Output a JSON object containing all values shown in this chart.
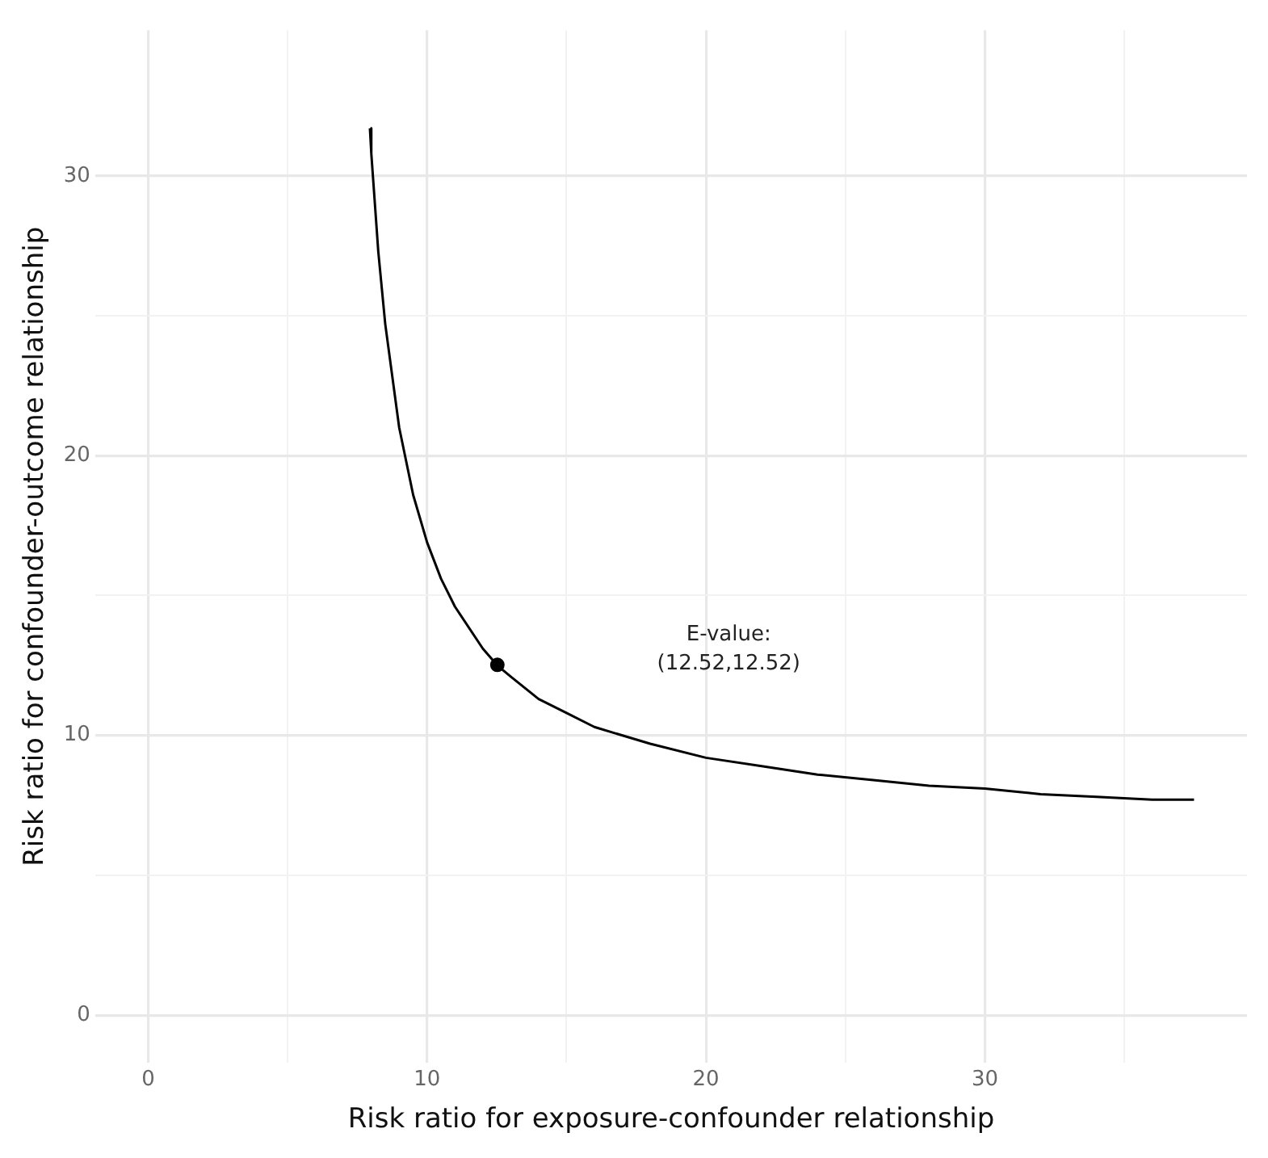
{
  "chart_data": {
    "type": "line",
    "xlabel": "Risk ratio for exposure-confounder relationship",
    "ylabel": "Risk ratio for confounder-outcome relationship",
    "xlim": [
      -1.9,
      39.4
    ],
    "ylim": [
      -1.7,
      35.2
    ],
    "xticks": [
      0,
      {
        "value": 5,
        "label": null
      },
      10,
      {
        "value": 15,
        "label": null
      },
      20,
      {
        "value": 25,
        "label": null
      },
      30,
      {
        "value": 35,
        "label": null
      }
    ],
    "yticks": [
      0,
      {
        "value": 5,
        "label": null
      },
      10,
      {
        "value": 15,
        "label": null
      },
      20,
      {
        "value": 25,
        "label": null
      },
      30
    ],
    "grid": true,
    "legend": false,
    "series": [
      {
        "type": "line",
        "color": "#000000",
        "marker": "none",
        "x": [
          7.95,
          8,
          8.25,
          8.5,
          9,
          9.5,
          10,
          10.5,
          11,
          12,
          12.52,
          13,
          14,
          15,
          16,
          18,
          20,
          22,
          24,
          26,
          28,
          30,
          32,
          34,
          36,
          37.5
        ],
        "values": [
          31.7,
          30.8,
          27.3,
          24.7,
          21.0,
          18.6,
          16.9,
          15.6,
          14.6,
          13.1,
          12.5,
          12.1,
          11.3,
          10.8,
          10.3,
          9.7,
          9.2,
          8.9,
          8.6,
          8.4,
          8.2,
          8.1,
          7.9,
          7.8,
          7.7,
          7.7
        ]
      },
      {
        "type": "scatter",
        "color": "#000000",
        "marker": "circle",
        "x": [
          12.52
        ],
        "values": [
          12.52
        ]
      }
    ],
    "annotations": [
      "E-value:\n(12.52,12.52)"
    ]
  }
}
